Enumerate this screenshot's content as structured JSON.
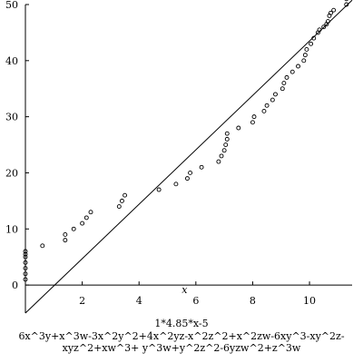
{
  "chart_data": {
    "type": "scatter",
    "xlabel": "x",
    "ylabel": "",
    "xlim": [
      0,
      11.5
    ],
    "ylim": [
      -5,
      50
    ],
    "x_ticks": [
      2,
      4,
      6,
      8,
      10
    ],
    "y_ticks": [
      0,
      10,
      20,
      30,
      40,
      50
    ],
    "grid": false,
    "legend": "none",
    "series": [
      {
        "kind": "points",
        "marker": "open-circle",
        "x": [
          0.0,
          0.0,
          0.0,
          0.0,
          0.0,
          0.0,
          0.0,
          0.6,
          1.4,
          1.4,
          1.7,
          2.0,
          2.15,
          2.3,
          3.3,
          3.4,
          3.5,
          4.7,
          5.3,
          5.7,
          5.8,
          6.2,
          6.8,
          6.9,
          7.0,
          7.05,
          7.1,
          7.1,
          7.5,
          8.0,
          8.05,
          8.4,
          8.5,
          8.7,
          8.8,
          9.05,
          9.1,
          9.2,
          9.4,
          9.6,
          9.8,
          9.85,
          9.9,
          10.05,
          10.15,
          10.3,
          10.35,
          10.5,
          10.6,
          10.65,
          10.7,
          10.75,
          10.85,
          11.3,
          11.3
        ],
        "y": [
          1.0,
          2.0,
          3.0,
          4.0,
          5.0,
          5.5,
          6.0,
          7.0,
          8.0,
          9.0,
          10.0,
          11.0,
          12.0,
          13.0,
          14.0,
          15.0,
          16.0,
          17.0,
          18.0,
          19.0,
          20.0,
          21.0,
          22.0,
          23.0,
          24.0,
          25.0,
          26.0,
          27.0,
          28.0,
          29.0,
          30.0,
          31.0,
          32.0,
          33.0,
          34.0,
          35.0,
          36.0,
          37.0,
          38.0,
          39.0,
          40.0,
          41.0,
          42.0,
          43.0,
          44.0,
          45.0,
          45.5,
          46.0,
          46.5,
          47.0,
          48.0,
          48.5,
          49.0,
          50.0,
          51.0
        ]
      },
      {
        "kind": "line",
        "formula": "1*4.85*x-5",
        "x": [
          0,
          11.5
        ],
        "y": [
          -5,
          50.775
        ]
      }
    ]
  },
  "captions": {
    "line_formula": "1*4.85*x-5",
    "polynomial": "6x^3y+x^3w-3x^2y^2+4x^2yz-x^2z^2+x^2zw-6xy^3-xy^2z-xyz^2+xw^3+ y^3w+y^2z^2-6yzw^2+z^3w"
  }
}
